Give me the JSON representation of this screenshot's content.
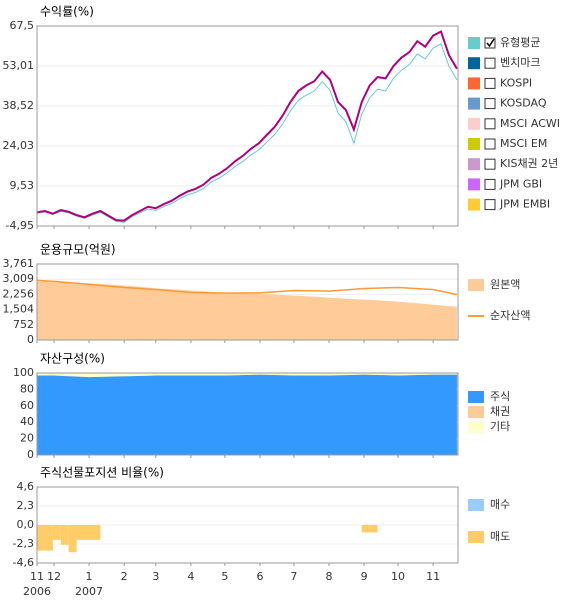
{
  "x_axis": {
    "xlim": [
      -15,
      357
    ],
    "xticks": [
      {
        "value": -15,
        "label": "11"
      },
      {
        "value": 0,
        "label": "12"
      },
      {
        "value": 31,
        "label": "1"
      },
      {
        "value": 62,
        "label": "2"
      },
      {
        "value": 90,
        "label": "3"
      },
      {
        "value": 121,
        "label": "4"
      },
      {
        "value": 151,
        "label": "5"
      },
      {
        "value": 182,
        "label": "6"
      },
      {
        "value": 212,
        "label": "7"
      },
      {
        "value": 243,
        "label": "8"
      },
      {
        "value": 274,
        "label": "9"
      },
      {
        "value": 304,
        "label": "10"
      },
      {
        "value": 335,
        "label": "11"
      }
    ],
    "years": [
      {
        "value": -15,
        "label": "2006"
      },
      {
        "value": 31,
        "label": "2007"
      }
    ]
  },
  "chart_data": [
    {
      "type": "line",
      "title": "수익률(%)",
      "ylim": [
        -4.95,
        67.5
      ],
      "yticks": [
        {
          "value": 67.5,
          "label": "67,5"
        },
        {
          "value": 53.01,
          "label": "53,01"
        },
        {
          "value": 38.52,
          "label": "38,52"
        },
        {
          "value": 24.03,
          "label": "24,03"
        },
        {
          "value": 9.53,
          "label": "9,53"
        },
        {
          "value": -4.95,
          "label": "-4,95"
        }
      ],
      "grid": true,
      "x": [
        -15,
        -8,
        -1,
        6,
        13,
        20,
        27,
        34,
        41,
        48,
        55,
        62,
        69,
        76,
        83,
        90,
        97,
        104,
        111,
        118,
        125,
        132,
        139,
        146,
        153,
        160,
        167,
        174,
        181,
        188,
        195,
        202,
        209,
        216,
        223,
        230,
        237,
        244,
        251,
        258,
        265,
        272,
        279,
        286,
        293,
        300,
        307,
        314,
        321,
        328,
        335,
        342,
        349,
        356
      ],
      "series": [
        {
          "color": "#b0007f",
          "values": [
            0.0,
            0.5,
            -0.5,
            0.8,
            0.2,
            -1.0,
            -1.8,
            -0.5,
            0.5,
            -1.2,
            -2.8,
            -3.0,
            -1.0,
            0.5,
            2.0,
            1.5,
            3.0,
            4.2,
            6.0,
            7.5,
            8.5,
            10.0,
            12.5,
            14.0,
            16.0,
            18.5,
            20.5,
            23.0,
            25.0,
            28.0,
            31.0,
            35.0,
            40.0,
            44.0,
            46.0,
            47.5,
            51.0,
            48.0,
            40.0,
            37.0,
            30.0,
            40.0,
            46.0,
            49.0,
            48.5,
            53.0,
            56.0,
            58.0,
            62.0,
            60.0,
            64.0,
            65.5,
            57.0,
            52.0
          ]
        },
        {
          "name": "유형평균",
          "color": "#66cccc",
          "checked": true,
          "values": [
            -0.3,
            0.2,
            -0.8,
            0.4,
            -0.2,
            -1.4,
            -2.2,
            -1.0,
            0.0,
            -1.7,
            -3.3,
            -3.6,
            -1.6,
            -0.2,
            1.2,
            0.7,
            2.1,
            3.2,
            4.9,
            6.3,
            7.2,
            8.6,
            11.0,
            12.4,
            14.3,
            16.6,
            18.5,
            20.8,
            22.6,
            25.4,
            28.2,
            32.0,
            36.8,
            40.6,
            42.5,
            44.0,
            47.3,
            44.2,
            36.0,
            32.8,
            25.0,
            35.6,
            41.5,
            44.6,
            44.0,
            48.6,
            51.5,
            53.5,
            57.4,
            55.6,
            59.5,
            61.0,
            53.0,
            48.0
          ]
        },
        {
          "name": "벤치마크",
          "color": "#006699",
          "checked": false
        },
        {
          "name": "KOSPI",
          "color": "#ff6633",
          "checked": false
        },
        {
          "name": "KOSDAQ",
          "color": "#6699cc",
          "checked": false
        },
        {
          "name": "MSCI ACWI",
          "color": "#ffcccc",
          "checked": false
        },
        {
          "name": "MSCI EM",
          "color": "#cccc00",
          "checked": false
        },
        {
          "name": "KIS채권 2년",
          "color": "#cc99cc",
          "checked": false
        },
        {
          "name": "JPM GBI",
          "color": "#cc66ff",
          "checked": false
        },
        {
          "name": "JPM EMBI",
          "color": "#ffcc33",
          "checked": false
        }
      ]
    },
    {
      "type": "area",
      "title": "운용규모(억원)",
      "ylim": [
        0,
        3761
      ],
      "yticks": [
        {
          "value": 3761,
          "label": "3,761"
        },
        {
          "value": 3009,
          "label": "3,009"
        },
        {
          "value": 2256,
          "label": "2,256"
        },
        {
          "value": 1504,
          "label": "1,504"
        },
        752,
        0
      ],
      "grid": true,
      "x": [
        -15,
        0,
        31,
        62,
        90,
        121,
        151,
        182,
        212,
        243,
        274,
        304,
        335,
        356
      ],
      "series": [
        {
          "name": "원본액",
          "color": "#ffcc99",
          "style": "area",
          "values": [
            2900,
            2880,
            2800,
            2700,
            2560,
            2450,
            2350,
            2280,
            2200,
            2100,
            2000,
            1900,
            1750,
            1650
          ]
        },
        {
          "name": "순자산액",
          "color": "#ff9933",
          "style": "line",
          "values": [
            2950,
            2900,
            2750,
            2600,
            2500,
            2350,
            2320,
            2330,
            2450,
            2420,
            2550,
            2600,
            2500,
            2250
          ]
        }
      ]
    },
    {
      "type": "area",
      "title": "자산구성(%)",
      "stacked": true,
      "ylim": [
        0,
        100
      ],
      "yticks": [
        100,
        80,
        60,
        40,
        20,
        0
      ],
      "grid": true,
      "x": [
        -15,
        0,
        31,
        62,
        90,
        121,
        151,
        182,
        212,
        243,
        274,
        304,
        335,
        356
      ],
      "series": [
        {
          "name": "주식",
          "color": "#3399ff",
          "style": "area",
          "values": [
            97,
            97,
            95,
            96,
            97,
            97,
            97,
            98,
            97,
            97,
            98,
            97,
            98,
            98
          ]
        },
        {
          "name": "채권",
          "color": "#ffcc99",
          "style": "area",
          "values": [
            0,
            0,
            0,
            0,
            0,
            0,
            0,
            0,
            0,
            0,
            0,
            0,
            0,
            0
          ]
        },
        {
          "name": "기타",
          "color": "#ffffcc",
          "style": "area",
          "values": [
            3,
            3,
            5,
            4,
            3,
            3,
            3,
            2,
            3,
            3,
            2,
            3,
            2,
            2
          ]
        }
      ]
    },
    {
      "type": "bar",
      "title": "주식선물포지션 비율(%)",
      "ylim": [
        -4.6,
        4.6
      ],
      "yticks": [
        {
          "value": 4.6,
          "label": "4,6"
        },
        {
          "value": 2.3,
          "label": "2,3"
        },
        {
          "value": 0,
          "label": "0,0"
        },
        {
          "value": -2.3,
          "label": "-2,3"
        },
        {
          "value": -4.6,
          "label": "-4,6"
        }
      ],
      "grid": true,
      "series": [
        {
          "name": "매수",
          "color": "#99ccff",
          "x": [],
          "values": []
        },
        {
          "name": "매도",
          "color": "#ffcc66",
          "x": [
            -15,
            -8,
            -1,
            6,
            13,
            20,
            27,
            34,
            272,
            279
          ],
          "values": [
            -3.1,
            -3.1,
            -1.8,
            -2.4,
            -3.3,
            -1.8,
            -1.8,
            -1.8,
            -0.9,
            -0.9
          ]
        }
      ]
    }
  ]
}
